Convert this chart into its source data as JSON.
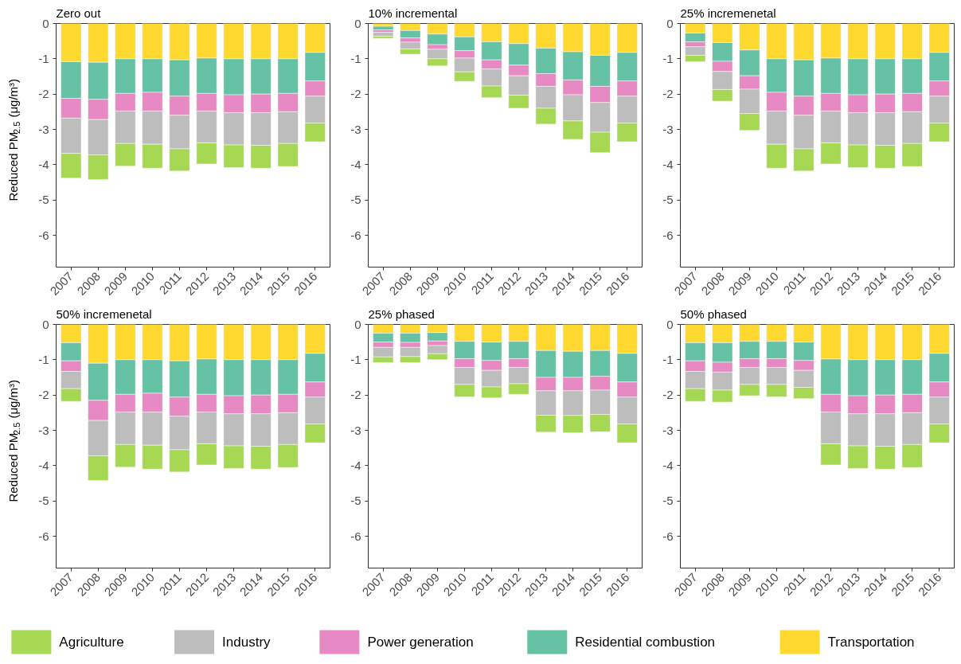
{
  "chart_data": [
    {
      "type": "bar",
      "stacked": true,
      "title": "Zero out",
      "ylabel": "Reduced PM$_{2.5}$ (μg/m³)",
      "categories": [
        "2007",
        "2008",
        "2009",
        "2010",
        "2011",
        "2012",
        "2013",
        "2014",
        "2015",
        "2016"
      ],
      "ylim": [
        -6.9,
        0
      ],
      "yticks": [
        0,
        -1,
        -2,
        -3,
        -4,
        -5,
        -6
      ],
      "legend": "bottom",
      "series": [
        {
          "name": "Transportation",
          "color": "#ffd92f",
          "values": [
            -1.08,
            -1.1,
            -1.0,
            -1.0,
            -1.03,
            -0.98,
            -1.0,
            -1.0,
            -1.0,
            -0.82
          ]
        },
        {
          "name": "Residential combustion",
          "color": "#66c2a5",
          "values": [
            -1.04,
            -1.05,
            -0.98,
            -0.95,
            -1.03,
            -1.0,
            -1.02,
            -1.0,
            -0.98,
            -0.81
          ]
        },
        {
          "name": "Power generation",
          "color": "#e78ac3",
          "values": [
            -0.56,
            -0.57,
            -0.5,
            -0.53,
            -0.54,
            -0.5,
            -0.51,
            -0.53,
            -0.52,
            -0.43
          ]
        },
        {
          "name": "Industry",
          "color": "#bdbdbd",
          "values": [
            -1.0,
            -1.0,
            -0.92,
            -0.94,
            -0.95,
            -0.9,
            -0.91,
            -0.92,
            -0.9,
            -0.76
          ]
        },
        {
          "name": "Agriculture",
          "color": "#a6d854",
          "values": [
            -0.7,
            -0.7,
            -0.64,
            -0.68,
            -0.63,
            -0.6,
            -0.64,
            -0.65,
            -0.65,
            -0.53
          ]
        }
      ]
    },
    {
      "type": "bar",
      "stacked": true,
      "title": "10% incremental",
      "categories": [
        "2007",
        "2008",
        "2009",
        "2010",
        "2011",
        "2012",
        "2013",
        "2014",
        "2015",
        "2016"
      ],
      "ylim": [
        -6.9,
        0
      ],
      "yticks": [
        0,
        -1,
        -2,
        -3,
        -4,
        -5,
        -6
      ],
      "series": [
        {
          "color": "#ffd92f",
          "values": [
            -0.08,
            -0.2,
            -0.3,
            -0.38,
            -0.52,
            -0.57,
            -0.7,
            -0.8,
            -0.9,
            -0.82
          ]
        },
        {
          "color": "#66c2a5",
          "values": [
            -0.1,
            -0.21,
            -0.3,
            -0.39,
            -0.51,
            -0.61,
            -0.72,
            -0.8,
            -0.88,
            -0.81
          ]
        },
        {
          "color": "#e78ac3",
          "values": [
            -0.07,
            -0.12,
            -0.13,
            -0.21,
            -0.26,
            -0.3,
            -0.36,
            -0.42,
            -0.46,
            -0.43
          ]
        },
        {
          "color": "#bdbdbd",
          "values": [
            -0.11,
            -0.19,
            -0.27,
            -0.39,
            -0.48,
            -0.55,
            -0.62,
            -0.74,
            -0.84,
            -0.76
          ]
        },
        {
          "color": "#a6d854",
          "values": [
            -0.06,
            -0.15,
            -0.2,
            -0.27,
            -0.33,
            -0.37,
            -0.45,
            -0.52,
            -0.58,
            -0.53
          ]
        }
      ]
    },
    {
      "type": "bar",
      "stacked": true,
      "title": "25% incremenetal",
      "categories": [
        "2007",
        "2008",
        "2009",
        "2010",
        "2011",
        "2012",
        "2013",
        "2014",
        "2015",
        "2016"
      ],
      "ylim": [
        -6.9,
        0
      ],
      "yticks": [
        0,
        -1,
        -2,
        -3,
        -4,
        -5,
        -6
      ],
      "series": [
        {
          "color": "#ffd92f",
          "values": [
            -0.27,
            -0.54,
            -0.75,
            -1.0,
            -1.03,
            -0.98,
            -1.0,
            -1.0,
            -1.0,
            -0.82
          ]
        },
        {
          "color": "#66c2a5",
          "values": [
            -0.25,
            -0.53,
            -0.73,
            -0.95,
            -1.03,
            -1.0,
            -1.02,
            -1.0,
            -0.98,
            -0.81
          ]
        },
        {
          "color": "#e78ac3",
          "values": [
            -0.14,
            -0.29,
            -0.38,
            -0.53,
            -0.54,
            -0.5,
            -0.51,
            -0.53,
            -0.52,
            -0.43
          ]
        },
        {
          "color": "#bdbdbd",
          "values": [
            -0.24,
            -0.51,
            -0.69,
            -0.94,
            -0.95,
            -0.9,
            -0.91,
            -0.92,
            -0.9,
            -0.76
          ]
        },
        {
          "color": "#a6d854",
          "values": [
            -0.18,
            -0.33,
            -0.48,
            -0.68,
            -0.63,
            -0.6,
            -0.64,
            -0.65,
            -0.65,
            -0.53
          ]
        }
      ]
    },
    {
      "type": "bar",
      "stacked": true,
      "title": "50% incremenetal",
      "ylabel": "Reduced PM$_{2.5}$ (μg/m³)",
      "categories": [
        "2007",
        "2008",
        "2009",
        "2010",
        "2011",
        "2012",
        "2013",
        "2014",
        "2015",
        "2016"
      ],
      "ylim": [
        -6.9,
        0
      ],
      "yticks": [
        0,
        -1,
        -2,
        -3,
        -4,
        -5,
        -6
      ],
      "series": [
        {
          "color": "#ffd92f",
          "values": [
            -0.52,
            -1.1,
            -1.0,
            -1.0,
            -1.03,
            -0.98,
            -1.0,
            -1.0,
            -1.0,
            -0.82
          ]
        },
        {
          "color": "#66c2a5",
          "values": [
            -0.51,
            -1.05,
            -0.98,
            -0.95,
            -1.03,
            -1.0,
            -1.02,
            -1.0,
            -0.98,
            -0.81
          ]
        },
        {
          "color": "#e78ac3",
          "values": [
            -0.3,
            -0.57,
            -0.5,
            -0.53,
            -0.54,
            -0.5,
            -0.51,
            -0.53,
            -0.52,
            -0.43
          ]
        },
        {
          "color": "#bdbdbd",
          "values": [
            -0.49,
            -1.0,
            -0.92,
            -0.94,
            -0.95,
            -0.9,
            -0.91,
            -0.92,
            -0.9,
            -0.76
          ]
        },
        {
          "color": "#a6d854",
          "values": [
            -0.36,
            -0.7,
            -0.64,
            -0.68,
            -0.63,
            -0.6,
            -0.64,
            -0.65,
            -0.65,
            -0.53
          ]
        }
      ]
    },
    {
      "type": "bar",
      "stacked": true,
      "title": "25% phased",
      "categories": [
        "2007",
        "2008",
        "2009",
        "2010",
        "2011",
        "2012",
        "2013",
        "2014",
        "2015",
        "2016"
      ],
      "ylim": [
        -6.9,
        0
      ],
      "yticks": [
        0,
        -1,
        -2,
        -3,
        -4,
        -5,
        -6
      ],
      "series": [
        {
          "color": "#ffd92f",
          "values": [
            -0.25,
            -0.25,
            -0.23,
            -0.48,
            -0.5,
            -0.48,
            -0.74,
            -0.76,
            -0.74,
            -0.82
          ]
        },
        {
          "color": "#66c2a5",
          "values": [
            -0.25,
            -0.26,
            -0.24,
            -0.49,
            -0.52,
            -0.49,
            -0.76,
            -0.74,
            -0.73,
            -0.81
          ]
        },
        {
          "color": "#e78ac3",
          "values": [
            -0.15,
            -0.14,
            -0.13,
            -0.25,
            -0.28,
            -0.25,
            -0.38,
            -0.38,
            -0.39,
            -0.43
          ]
        },
        {
          "color": "#bdbdbd",
          "values": [
            -0.27,
            -0.26,
            -0.23,
            -0.48,
            -0.47,
            -0.46,
            -0.69,
            -0.7,
            -0.69,
            -0.76
          ]
        },
        {
          "color": "#a6d854",
          "values": [
            -0.16,
            -0.17,
            -0.17,
            -0.35,
            -0.31,
            -0.3,
            -0.48,
            -0.49,
            -0.49,
            -0.53
          ]
        }
      ]
    },
    {
      "type": "bar",
      "stacked": true,
      "title": "50% phased",
      "categories": [
        "2007",
        "2008",
        "2009",
        "2010",
        "2011",
        "2012",
        "2013",
        "2014",
        "2015",
        "2016"
      ],
      "ylim": [
        -6.9,
        0
      ],
      "yticks": [
        0,
        -1,
        -2,
        -3,
        -4,
        -5,
        -6
      ],
      "series": [
        {
          "color": "#ffd92f",
          "values": [
            -0.52,
            -0.52,
            -0.48,
            -0.48,
            -0.5,
            -0.98,
            -1.0,
            -1.0,
            -1.0,
            -0.82
          ]
        },
        {
          "color": "#66c2a5",
          "values": [
            -0.51,
            -0.55,
            -0.49,
            -0.49,
            -0.52,
            -1.0,
            -1.02,
            -1.0,
            -0.98,
            -0.81
          ]
        },
        {
          "color": "#e78ac3",
          "values": [
            -0.3,
            -0.28,
            -0.25,
            -0.25,
            -0.28,
            -0.5,
            -0.51,
            -0.53,
            -0.52,
            -0.43
          ]
        },
        {
          "color": "#bdbdbd",
          "values": [
            -0.49,
            -0.51,
            -0.48,
            -0.48,
            -0.48,
            -0.9,
            -0.91,
            -0.92,
            -0.9,
            -0.76
          ]
        },
        {
          "color": "#a6d854",
          "values": [
            -0.36,
            -0.34,
            -0.32,
            -0.35,
            -0.32,
            -0.6,
            -0.64,
            -0.65,
            -0.65,
            -0.53
          ]
        }
      ]
    }
  ]
}
